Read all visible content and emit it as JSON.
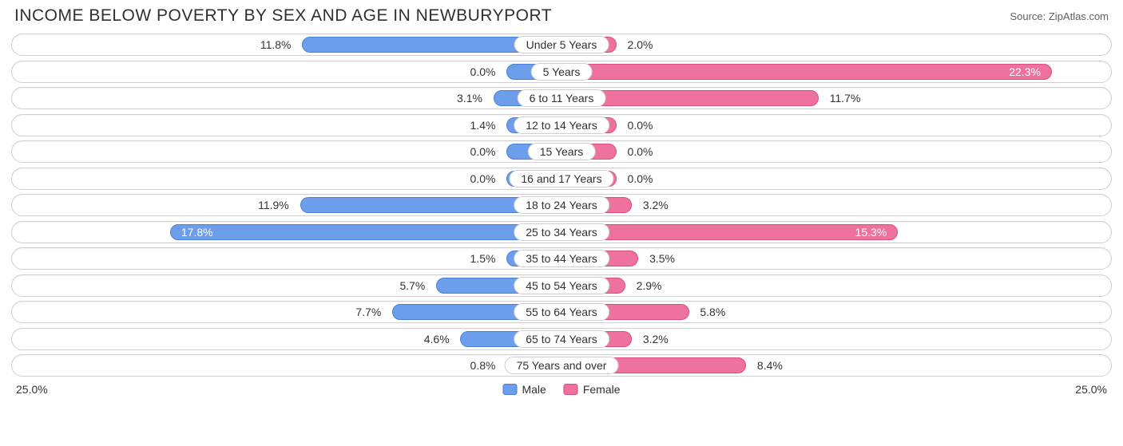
{
  "title": "INCOME BELOW POVERTY BY SEX AND AGE IN NEWBURYPORT",
  "source": "Source: ZipAtlas.com",
  "chart": {
    "type": "diverging-bar",
    "max_value": 25.0,
    "axis_left_label": "25.0%",
    "axis_right_label": "25.0%",
    "male_color": "#6d9eeb",
    "male_border": "#4a7fd6",
    "female_color": "#ee719e",
    "female_border": "#d84e82",
    "track_border": "#cfcfcf",
    "background": "#ffffff",
    "label_color": "#333333",
    "label_fontsize": 14,
    "title_color": "#303030",
    "title_fontsize": 21,
    "legend": [
      {
        "label": "Male",
        "color": "#6d9eeb",
        "border": "#4a7fd6"
      },
      {
        "label": "Female",
        "color": "#ee719e",
        "border": "#d84e82"
      }
    ],
    "rows": [
      {
        "category": "Under 5 Years",
        "male": 11.8,
        "female": 2.0
      },
      {
        "category": "5 Years",
        "male": 0.0,
        "female": 22.3
      },
      {
        "category": "6 to 11 Years",
        "male": 3.1,
        "female": 11.7
      },
      {
        "category": "12 to 14 Years",
        "male": 1.4,
        "female": 0.0
      },
      {
        "category": "15 Years",
        "male": 0.0,
        "female": 0.0
      },
      {
        "category": "16 and 17 Years",
        "male": 0.0,
        "female": 0.0
      },
      {
        "category": "18 to 24 Years",
        "male": 11.9,
        "female": 3.2
      },
      {
        "category": "25 to 34 Years",
        "male": 17.8,
        "female": 15.3
      },
      {
        "category": "35 to 44 Years",
        "male": 1.5,
        "female": 3.5
      },
      {
        "category": "45 to 54 Years",
        "male": 5.7,
        "female": 2.9
      },
      {
        "category": "55 to 64 Years",
        "male": 7.7,
        "female": 5.8
      },
      {
        "category": "65 to 74 Years",
        "male": 4.6,
        "female": 3.2
      },
      {
        "category": "75 Years and over",
        "male": 0.8,
        "female": 8.4
      }
    ]
  }
}
